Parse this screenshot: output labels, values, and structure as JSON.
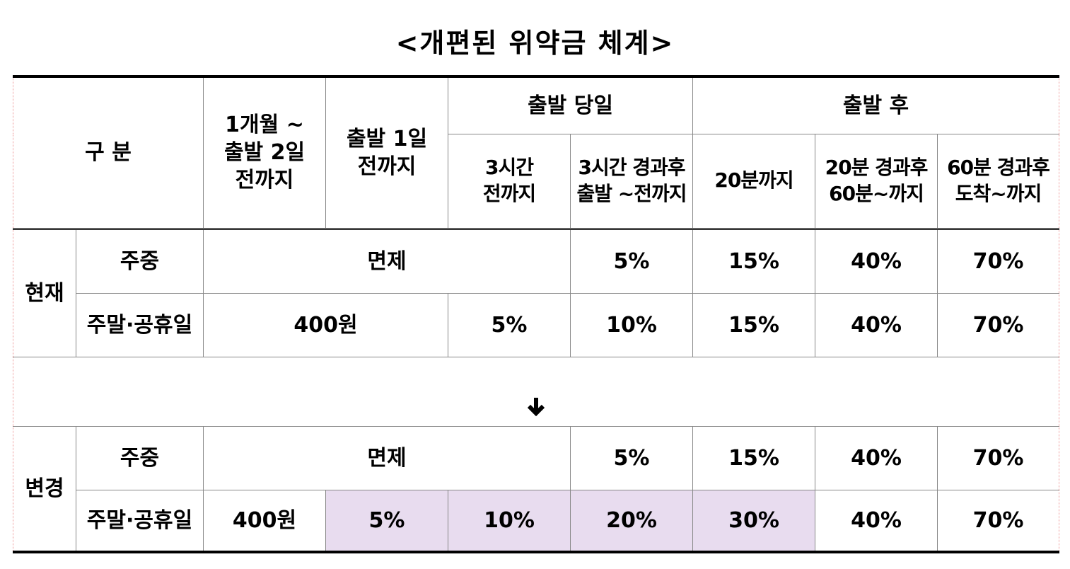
{
  "title": "<개편된 위약금 체계>",
  "header": {
    "category": "구  분",
    "one_month": "1개월 ~\n출발 2일\n전까지",
    "one_day": "출발 1일\n전까지",
    "departure_day": {
      "label": "출발 당일",
      "sub": [
        "3시간\n전까지",
        "3시간 경과후\n출발 ~전까지"
      ]
    },
    "after_departure": {
      "label": "출발 후",
      "sub": [
        "20분까지",
        "20분 경과후\n60분~까지",
        "60분 경과후\n도착~까지"
      ]
    }
  },
  "groups": [
    {
      "label": "현재",
      "rows": [
        {
          "label": "주중",
          "cells": [
            "면제",
            "5%",
            "15%",
            "40%",
            "70%"
          ]
        },
        {
          "label": "주말·공휴일",
          "cells": [
            "400원",
            "5%",
            "10%",
            "15%",
            "40%",
            "70%"
          ]
        }
      ]
    },
    {
      "label": "변경",
      "rows": [
        {
          "label": "주중",
          "cells": [
            "면제",
            "5%",
            "15%",
            "40%",
            "70%"
          ]
        },
        {
          "label": "주말·공휴일",
          "cells": [
            "400원",
            "5%",
            "10%",
            "20%",
            "30%",
            "40%",
            "70%"
          ]
        }
      ]
    }
  ]
}
